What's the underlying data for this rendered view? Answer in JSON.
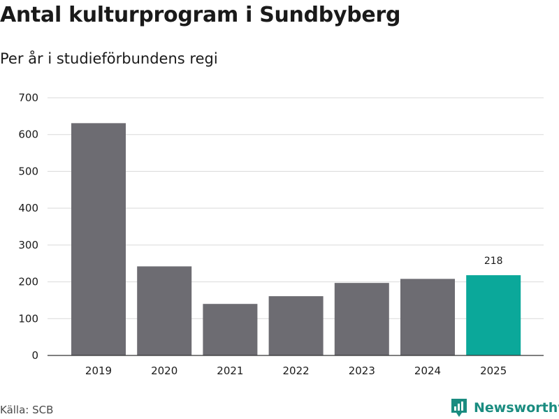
{
  "header": {
    "title": "Antal kulturprogram i Sundbyberg",
    "subtitle": "Per år i studieförbundens regi"
  },
  "footer": {
    "source": "Källa: SCB",
    "brand": "Newsworthy"
  },
  "colors": {
    "bar": "#6d6c72",
    "highlight": "#0ba89a",
    "grid": "#d9d9d9",
    "brand": "#1a8c80"
  },
  "chart_data": {
    "type": "bar",
    "title": "Antal kulturprogram i Sundbyberg",
    "subtitle": "Per år i studieförbundens regi",
    "categories": [
      "2019",
      "2020",
      "2021",
      "2022",
      "2023",
      "2024",
      "2025"
    ],
    "values": [
      631,
      242,
      140,
      161,
      197,
      208,
      218
    ],
    "highlight_index": 6,
    "data_labels": [
      {
        "index": 6,
        "text": "218"
      }
    ],
    "ylim": [
      0,
      700
    ],
    "yticks": [
      0,
      100,
      200,
      300,
      400,
      500,
      600,
      700
    ],
    "xlabel": "",
    "ylabel": "",
    "grid": true
  }
}
